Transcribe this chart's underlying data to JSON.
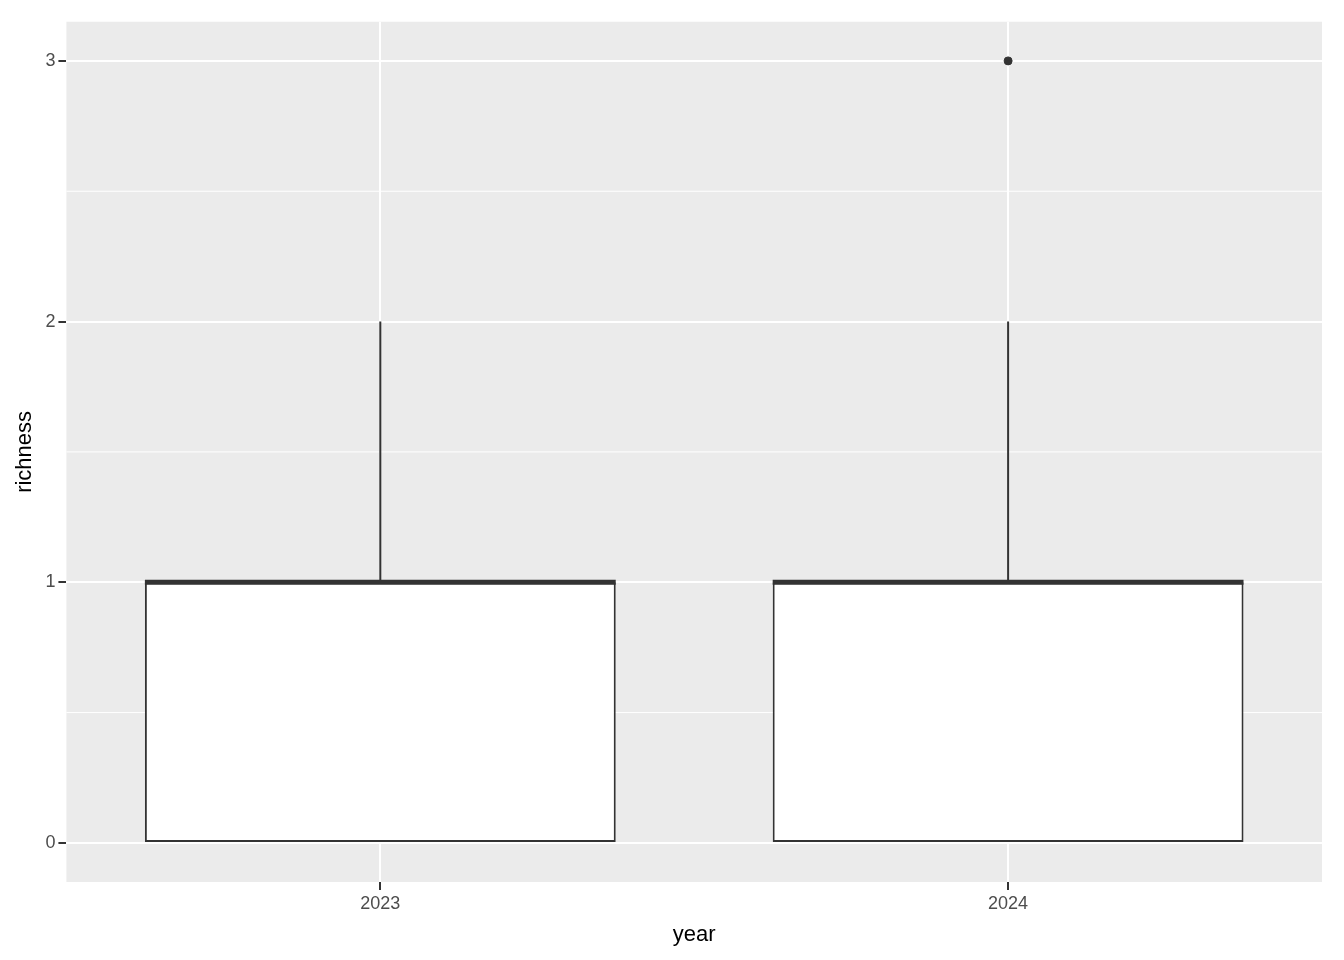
{
  "chart_data": {
    "type": "box",
    "xlabel": "year",
    "ylabel": "richness",
    "categories": [
      "2023",
      "2024"
    ],
    "boxes": [
      {
        "low": 0,
        "q1": 0,
        "median": 1,
        "q3": 1,
        "high": 2
      },
      {
        "low": 0,
        "q1": 0,
        "median": 1,
        "q3": 1,
        "high": 2,
        "outliers": [
          3
        ]
      }
    ],
    "ylim": [
      -0.15,
      3.15
    ],
    "yticks": [
      0,
      1,
      2,
      3
    ],
    "grid": true
  }
}
